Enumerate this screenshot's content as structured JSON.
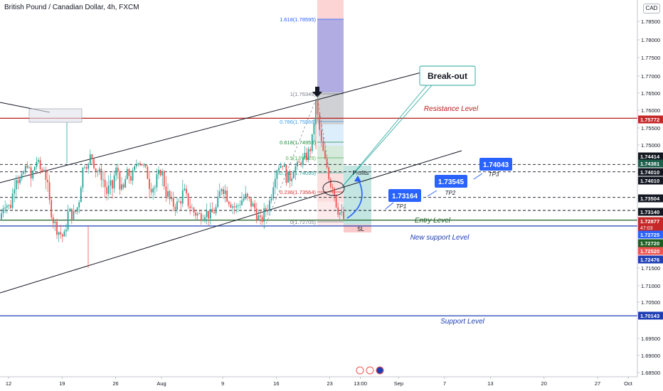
{
  "header": {
    "title": "British Pound / Canadian Dollar, 4h, FXCM",
    "currency_badge": "CAD"
  },
  "chart_data": {
    "type": "candlestick",
    "symbol": "British Pound / Canadian Dollar",
    "timeframe": "4h",
    "source": "FXCM",
    "ylim": [
      1.685,
      1.79
    ],
    "y_ticks": [
      {
        "v": 1.785,
        "t": "1.78500"
      },
      {
        "v": 1.78,
        "t": "1.78000"
      },
      {
        "v": 1.775,
        "t": "1.77500"
      },
      {
        "v": 1.77,
        "t": "1.77000"
      },
      {
        "v": 1.765,
        "t": "1.76500"
      },
      {
        "v": 1.76,
        "t": "1.76000"
      },
      {
        "v": 1.755,
        "t": "1.75500"
      },
      {
        "v": 1.75,
        "t": "1.75000"
      },
      {
        "v": 1.745,
        "t": "1.74500"
      },
      {
        "v": 1.715,
        "t": "1.71500"
      },
      {
        "v": 1.71,
        "t": "1.71000"
      },
      {
        "v": 1.705,
        "t": "1.70500"
      },
      {
        "v": 1.695,
        "t": "1.69500"
      },
      {
        "v": 1.69,
        "t": "1.69000"
      },
      {
        "v": 1.685,
        "t": "1.68500"
      }
    ],
    "x_ticks": [
      {
        "d": "2021-07-12",
        "t": "12"
      },
      {
        "d": "2021-07-19",
        "t": "19"
      },
      {
        "d": "2021-07-26",
        "t": "26"
      },
      {
        "d": "2021-08-01",
        "t": "Aug"
      },
      {
        "d": "2021-08-09",
        "t": "9"
      },
      {
        "d": "2021-08-16",
        "t": "16"
      },
      {
        "d": "2021-08-23",
        "t": "23"
      },
      {
        "d": "2021-08-27",
        "t": "13:00"
      },
      {
        "d": "2021-09-01",
        "t": "Sep"
      },
      {
        "d": "2021-09-07",
        "t": "7"
      },
      {
        "d": "2021-09-13",
        "t": "13"
      },
      {
        "d": "2021-09-20",
        "t": "20"
      },
      {
        "d": "2021-09-27",
        "t": "27"
      },
      {
        "d": "2021-10-01",
        "t": "Oct"
      }
    ],
    "price_badges": [
      {
        "v": 1.75772,
        "t": "1.75772",
        "color": "#c62828",
        "text_color": "#ffffff"
      },
      {
        "v": 1.74414,
        "t": "1.74414",
        "color": "#131722",
        "text_color": "#ffffff"
      },
      {
        "v": 1.74381,
        "t": "1.74381",
        "color": "#1b5e4a",
        "text_color": "#ffffff"
      },
      {
        "v": 1.7401,
        "t": "1.74010",
        "color": "#131722",
        "text_color": "#ffffff"
      },
      {
        "v": 1.7395,
        "t": "1.74010",
        "color": "#131722",
        "text_color": "#ffffff"
      },
      {
        "v": 1.73504,
        "t": "1.73504",
        "color": "#131722",
        "text_color": "#ffffff"
      },
      {
        "v": 1.7314,
        "t": "1.73140",
        "color": "#131722",
        "text_color": "#ffffff"
      },
      {
        "v": 1.72877,
        "t": "1.72877",
        "color": "#c62828",
        "text_color": "#ffffff",
        "sub": "47:03"
      },
      {
        "v": 1.72725,
        "t": "1.72725",
        "color": "#2962ff",
        "text_color": "#ffffff"
      },
      {
        "v": 1.7272,
        "t": "1.72720",
        "color": "#1b5e20",
        "text_color": "#ffffff"
      },
      {
        "v": 1.7252,
        "t": "1.72520",
        "color": "#ef5350",
        "text_color": "#ffffff"
      },
      {
        "v": 1.72476,
        "t": "1.72476",
        "color": "#1e3fb4",
        "text_color": "#ffffff"
      },
      {
        "v": 1.70143,
        "t": "1.70143",
        "color": "#1e3fb4",
        "text_color": "#ffffff"
      }
    ],
    "horizontal_levels": [
      {
        "v": 1.75772,
        "label": "Resistance Level",
        "color": "#b71c1c",
        "dash": false
      },
      {
        "v": 1.74381,
        "label": "",
        "color": "#131722",
        "dash": true
      },
      {
        "v": 1.7401,
        "label": "",
        "color": "#131722",
        "dash": true
      },
      {
        "v": 1.73504,
        "label": "",
        "color": "#131722",
        "dash": true
      },
      {
        "v": 1.7314,
        "label": "",
        "color": "#131722",
        "dash": true
      },
      {
        "v": 1.72877,
        "label": "Entry Level",
        "color": "#1b5e20",
        "dash": false
      },
      {
        "v": 1.72725,
        "label": "New support Level",
        "color": "#1e3fb4",
        "dash": false
      },
      {
        "v": 1.70143,
        "label": "Support Level",
        "color": "#1e3fb4",
        "dash": false
      }
    ],
    "fib_levels": [
      {
        "ratio": "1.618",
        "price": "1.78595",
        "text": "1.618(1.78595)",
        "color": "#2962ff"
      },
      {
        "ratio": "1",
        "price": "1.76349",
        "text": "1(1.76349)",
        "color": "#787b86"
      },
      {
        "ratio": "0.786",
        "price": "1.75566",
        "text": "0.786(1.75566)",
        "color": "#3d9ee8"
      },
      {
        "ratio": "0.618",
        "price": "1.74953",
        "text": "0.618(1.74953)",
        "color": "#1b8a3a"
      },
      {
        "ratio": "0.5",
        "price": "1.74525",
        "text": "0.5(1.74525)",
        "color": "#4caf50"
      },
      {
        "ratio": "0.382",
        "price": "1.74095",
        "text": "0.382(1.74095)",
        "color": "#26a69a"
      },
      {
        "ratio": "0.236",
        "price": "1.73564",
        "text": "0.236(1.73564)",
        "color": "#d32f2f"
      },
      {
        "ratio": "0",
        "price": "1.72705",
        "text": "0(1.72705)",
        "color": "#787b86"
      }
    ],
    "targets": [
      {
        "name": "TP1",
        "value": "1.73164"
      },
      {
        "name": "TP2",
        "value": "1.73545"
      },
      {
        "name": "TP3",
        "value": "1.74043"
      }
    ],
    "annotations": {
      "breakout": "Break-out",
      "profits": "Profits",
      "sl": "SL"
    },
    "colors": {
      "up": "#26a69a",
      "down": "#ef5350",
      "resistance": "#b71c1c",
      "support": "#1e3fb4",
      "channel": "#131722",
      "breakout_box": "#26a69a"
    }
  }
}
